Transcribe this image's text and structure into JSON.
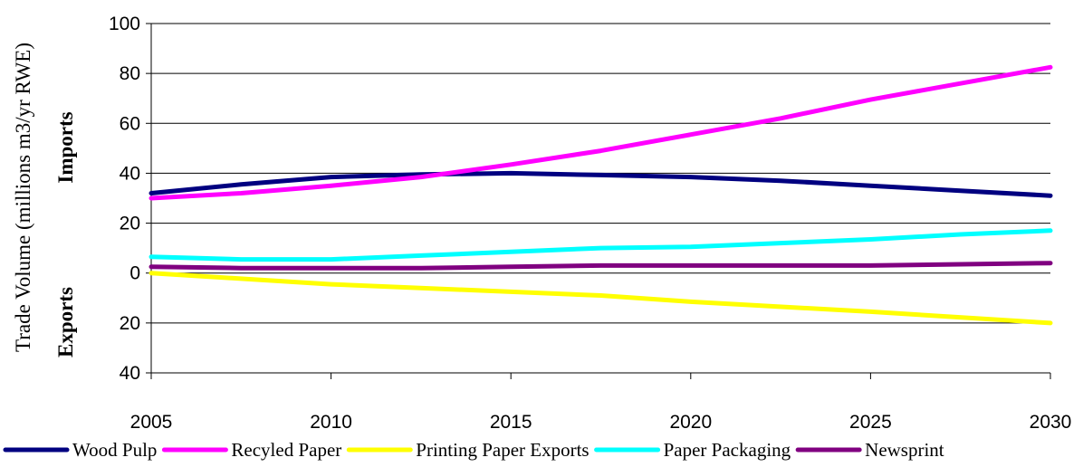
{
  "chart_data": {
    "type": "line",
    "title": "",
    "xlabel": "",
    "ylabel": "Trade Volume (millions m3/yr RWE)",
    "y_section_labels": {
      "upper": "Imports",
      "lower": "Exports"
    },
    "x": [
      2005,
      2010,
      2015,
      2020,
      2025,
      2030
    ],
    "x_tick_labels": [
      "2005",
      "2010",
      "2015",
      "2020",
      "2025",
      "2030"
    ],
    "ylim": [
      -40,
      100
    ],
    "y_ticks": [
      100,
      80,
      60,
      40,
      20,
      0,
      -20,
      -40
    ],
    "y_tick_labels": [
      "100",
      "80",
      "60",
      "40",
      "20",
      "0",
      "20",
      "40"
    ],
    "grid": true,
    "legend_position": "bottom",
    "series": [
      {
        "name": "Wood Pulp",
        "color": "#000080",
        "points": [
          [
            2005,
            32
          ],
          [
            2007.5,
            35.5
          ],
          [
            2010,
            38.5
          ],
          [
            2012.5,
            39.5
          ],
          [
            2015,
            40
          ],
          [
            2017.5,
            39.3
          ],
          [
            2020,
            38.5
          ],
          [
            2022.5,
            37
          ],
          [
            2025,
            35
          ],
          [
            2027.5,
            33
          ],
          [
            2030,
            31
          ]
        ]
      },
      {
        "name": "Recyled Paper",
        "color": "#FF00FF",
        "points": [
          [
            2005,
            30
          ],
          [
            2007.5,
            32
          ],
          [
            2010,
            35
          ],
          [
            2012.5,
            38.5
          ],
          [
            2015,
            43.5
          ],
          [
            2017.5,
            49
          ],
          [
            2020,
            55.5
          ],
          [
            2022.5,
            62
          ],
          [
            2025,
            69.5
          ],
          [
            2027.5,
            76
          ],
          [
            2030,
            82.5
          ]
        ]
      },
      {
        "name": "Printing Paper Exports",
        "color": "#FFFF00",
        "points": [
          [
            2005,
            0
          ],
          [
            2010,
            -4.5
          ],
          [
            2015,
            -7.5
          ],
          [
            2017.5,
            -9
          ],
          [
            2020,
            -11.5
          ],
          [
            2025,
            -15.5
          ],
          [
            2030,
            -20
          ]
        ]
      },
      {
        "name": "Paper Packaging",
        "color": "#00FFFF",
        "points": [
          [
            2005,
            6.5
          ],
          [
            2007.5,
            5.5
          ],
          [
            2010,
            5.5
          ],
          [
            2012.5,
            7
          ],
          [
            2015,
            8.5
          ],
          [
            2017.5,
            10
          ],
          [
            2020,
            10.5
          ],
          [
            2022.5,
            12
          ],
          [
            2025,
            13.5
          ],
          [
            2027.5,
            15.5
          ],
          [
            2030,
            17
          ]
        ]
      },
      {
        "name": "Newsprint",
        "color": "#800080",
        "points": [
          [
            2005,
            2.5
          ],
          [
            2007.5,
            2
          ],
          [
            2010,
            2
          ],
          [
            2012.5,
            2
          ],
          [
            2015,
            2.5
          ],
          [
            2017.5,
            3
          ],
          [
            2020,
            3
          ],
          [
            2025,
            3
          ],
          [
            2030,
            4
          ]
        ]
      }
    ]
  }
}
